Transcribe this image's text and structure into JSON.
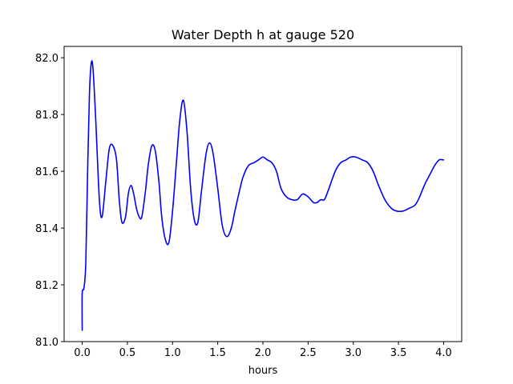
{
  "chart_data": {
    "type": "line",
    "title": "Water Depth h at gauge 520",
    "xlabel": "hours",
    "ylabel": "",
    "xlim": [
      -0.2,
      4.2
    ],
    "ylim": [
      81.0,
      82.04
    ],
    "xticks": [
      0.0,
      0.5,
      1.0,
      1.5,
      2.0,
      2.5,
      3.0,
      3.5,
      4.0
    ],
    "xtick_labels": [
      "0.0",
      "0.5",
      "1.0",
      "1.5",
      "2.0",
      "2.5",
      "3.0",
      "3.5",
      "4.0"
    ],
    "yticks": [
      81.0,
      81.2,
      81.4,
      81.6,
      81.8,
      82.0
    ],
    "ytick_labels": [
      "81.0",
      "81.2",
      "81.4",
      "81.6",
      "81.8",
      "82.0"
    ],
    "grid": false,
    "legend": "none",
    "series": [
      {
        "color": "#0000ff",
        "x": [
          0.0,
          0.0,
          0.02,
          0.04,
          0.06,
          0.08,
          0.1,
          0.12,
          0.15,
          0.19,
          0.22,
          0.26,
          0.3,
          0.34,
          0.38,
          0.41,
          0.44,
          0.48,
          0.51,
          0.54,
          0.57,
          0.6,
          0.63,
          0.66,
          0.7,
          0.73,
          0.77,
          0.81,
          0.85,
          0.88,
          0.92,
          0.96,
          1.0,
          1.04,
          1.08,
          1.12,
          1.16,
          1.2,
          1.24,
          1.28,
          1.32,
          1.37,
          1.41,
          1.45,
          1.5,
          1.55,
          1.6,
          1.65,
          1.69,
          1.74,
          1.78,
          1.84,
          1.9,
          1.95,
          2.0,
          2.05,
          2.1,
          2.15,
          2.2,
          2.26,
          2.32,
          2.38,
          2.44,
          2.5,
          2.56,
          2.6,
          2.64,
          2.68,
          2.72,
          2.8,
          2.86,
          2.92,
          2.97,
          3.03,
          3.1,
          3.16,
          3.22,
          3.28,
          3.35,
          3.42,
          3.48,
          3.55,
          3.62,
          3.68,
          3.72,
          3.76,
          3.8,
          3.85,
          3.9,
          3.95,
          4.0
        ],
        "y": [
          81.04,
          81.17,
          81.19,
          81.28,
          81.6,
          81.87,
          81.98,
          81.96,
          81.78,
          81.5,
          81.44,
          81.56,
          81.68,
          81.69,
          81.64,
          81.5,
          81.42,
          81.44,
          81.52,
          81.55,
          81.52,
          81.47,
          81.44,
          81.44,
          81.53,
          81.62,
          81.69,
          81.67,
          81.56,
          81.44,
          81.36,
          81.35,
          81.46,
          81.62,
          81.78,
          81.85,
          81.74,
          81.54,
          81.43,
          81.42,
          81.53,
          81.66,
          81.7,
          81.66,
          81.54,
          81.41,
          81.37,
          81.4,
          81.46,
          81.53,
          81.58,
          81.62,
          81.63,
          81.64,
          81.65,
          81.64,
          81.63,
          81.6,
          81.54,
          81.51,
          81.5,
          81.5,
          81.52,
          81.51,
          81.49,
          81.49,
          81.5,
          81.5,
          81.53,
          81.6,
          81.63,
          81.64,
          81.65,
          81.65,
          81.64,
          81.63,
          81.6,
          81.55,
          81.5,
          81.47,
          81.46,
          81.46,
          81.47,
          81.48,
          81.5,
          81.53,
          81.56,
          81.59,
          81.62,
          81.64,
          81.64
        ]
      }
    ]
  }
}
